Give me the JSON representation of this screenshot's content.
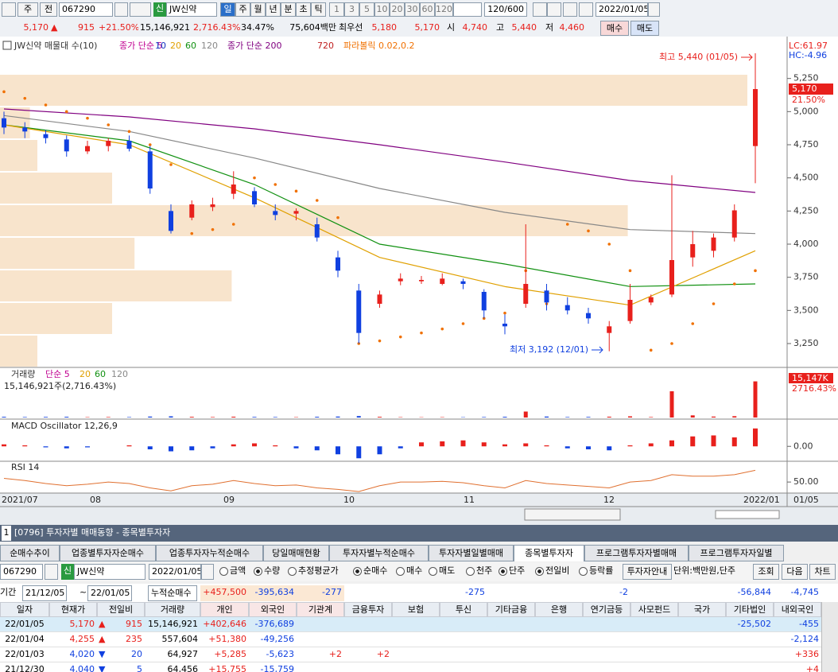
{
  "toolbar": {
    "period_btn": "주",
    "prev_btn": "전",
    "code": "067290",
    "market_badge": "신",
    "name": "JW신약",
    "intervals": [
      {
        "label": "일",
        "selected": true
      },
      {
        "label": "주",
        "selected": false
      },
      {
        "label": "월",
        "selected": false
      },
      {
        "label": "년",
        "selected": false
      },
      {
        "label": "분",
        "selected": false
      },
      {
        "label": "초",
        "selected": false
      },
      {
        "label": "틱",
        "selected": false
      }
    ],
    "minutes": [
      "1",
      "3",
      "5",
      "10",
      "20",
      "30",
      "60",
      "120"
    ],
    "count": "120/600",
    "date": "2022/01/05"
  },
  "quote": {
    "price": "5,170",
    "arrow": "▲",
    "change": "915",
    "rate": "+21.50%",
    "volume": "15,146,921",
    "volume_rate": "2,716.43%",
    "turnover": "34.47%",
    "amount": "75,604백만",
    "best_label": "최우선",
    "ask": "5,180",
    "bid": "5,170",
    "open_label": "시",
    "open": "4,740",
    "high_label": "고",
    "high": "5,440",
    "low_label": "저",
    "low": "4,460",
    "buy": "매수",
    "sell": "매도"
  },
  "chart_data": [
    {
      "type": "candlestick",
      "legend": [
        {
          "text": "JW신약 매물대 수(10)",
          "color": "#333333"
        },
        {
          "text": "종가 단순 5",
          "color": "#c00090"
        },
        {
          "text": "10",
          "color": "#1030c0"
        },
        {
          "text": "20",
          "color": "#e0a000"
        },
        {
          "text": "60",
          "color": "#109010"
        },
        {
          "text": "120",
          "color": "#888888"
        },
        {
          "text": "종가 단순 200",
          "color": "#800080"
        },
        {
          "text": "720",
          "color": "#c02020"
        },
        {
          "text": "파라볼릭 0.02,0.2",
          "color": "#f07000"
        }
      ],
      "lc": "LC:61.97",
      "hc": "HC:-4.96",
      "annotations": [
        "최고 5,440 (01/05)",
        "최저 3,192 (12/01)"
      ],
      "last_price_label": "5,170",
      "last_rate_label": "21.50%",
      "last_price": 5170,
      "ylim": [
        3070,
        5530
      ],
      "yticks": [
        {
          "value": 3250,
          "label": "3,250"
        },
        {
          "value": 3500,
          "label": "3,500"
        },
        {
          "value": 3750,
          "label": "3,750"
        },
        {
          "value": 4000,
          "label": "4,000"
        },
        {
          "value": 4250,
          "label": "4,250"
        },
        {
          "value": 4500,
          "label": "4,500"
        },
        {
          "value": 4750,
          "label": "4,750"
        },
        {
          "value": 5000,
          "label": "5,000"
        },
        {
          "value": 5250,
          "label": "5,250"
        }
      ],
      "ohlc": [
        [
          4950,
          5000,
          4830,
          4880
        ],
        [
          4880,
          4920,
          4800,
          4850
        ],
        [
          4830,
          4860,
          4760,
          4800
        ],
        [
          4790,
          4820,
          4660,
          4700
        ],
        [
          4700,
          4780,
          4680,
          4740
        ],
        [
          4740,
          4800,
          4700,
          4780
        ],
        [
          4780,
          4820,
          4700,
          4720
        ],
        [
          4700,
          4740,
          4380,
          4420
        ],
        [
          4250,
          4300,
          4080,
          4100
        ],
        [
          4200,
          4330,
          4180,
          4300
        ],
        [
          4280,
          4350,
          4250,
          4300
        ],
        [
          4380,
          4550,
          4340,
          4450
        ],
        [
          4400,
          4430,
          4280,
          4300
        ],
        [
          4250,
          4300,
          4180,
          4220
        ],
        [
          4230,
          4270,
          4180,
          4250
        ],
        [
          4150,
          4200,
          4020,
          4050
        ],
        [
          3900,
          3950,
          3750,
          3800
        ],
        [
          3650,
          3700,
          3250,
          3330
        ],
        [
          3550,
          3650,
          3520,
          3620
        ],
        [
          3720,
          3780,
          3690,
          3740
        ],
        [
          3720,
          3760,
          3700,
          3730
        ],
        [
          3700,
          3780,
          3690,
          3740
        ],
        [
          3720,
          3740,
          3660,
          3700
        ],
        [
          3640,
          3660,
          3440,
          3500
        ],
        [
          3400,
          3470,
          3320,
          3380
        ],
        [
          3550,
          4150,
          3520,
          3700
        ],
        [
          3650,
          3700,
          3500,
          3560
        ],
        [
          3540,
          3600,
          3470,
          3500
        ],
        [
          3480,
          3520,
          3400,
          3440
        ],
        [
          3330,
          3420,
          3192,
          3380
        ],
        [
          3420,
          3700,
          3400,
          3580
        ],
        [
          3560,
          3620,
          3540,
          3600
        ],
        [
          3620,
          4520,
          3600,
          3880
        ],
        [
          3900,
          4100,
          3830,
          4000
        ],
        [
          3950,
          4080,
          3900,
          4050
        ],
        [
          4050,
          4300,
          4020,
          4255
        ],
        [
          4740,
          5440,
          4460,
          5170
        ]
      ],
      "series": [
        {
          "color": "#800080",
          "values": [
            5020,
            4960,
            4870,
            4750,
            4620,
            4480,
            4390
          ]
        },
        {
          "color": "#888888",
          "values": [
            4970,
            4850,
            4650,
            4420,
            4240,
            4110,
            4080
          ]
        },
        {
          "color": "#109010",
          "values": [
            4900,
            4780,
            4450,
            4000,
            3850,
            3680,
            3700
          ]
        },
        {
          "color": "#e0a000",
          "values": [
            4900,
            4750,
            4350,
            3900,
            3680,
            3540,
            3950
          ]
        }
      ],
      "sar": [
        5150,
        5100,
        5050,
        5000,
        4950,
        4900,
        4850,
        4750,
        4600,
        4080,
        4110,
        4150,
        4500,
        4450,
        4400,
        4330,
        4200,
        3250,
        3270,
        3300,
        3330,
        3360,
        3400,
        3440,
        3480,
        3800,
        3550,
        4150,
        4100,
        4000,
        3800,
        3200,
        3250,
        3400,
        3550,
        3700,
        3800
      ],
      "sar_color": "#f07000",
      "volume_profile": [
        0,
        100,
        4,
        5,
        15,
        84,
        18,
        31,
        15,
        5
      ],
      "profile_color": "#f8e4cc"
    },
    {
      "type": "volume",
      "legend": [
        {
          "text": "거래량",
          "color": "#333333"
        },
        {
          "text": "단순 5",
          "color": "#c00090"
        },
        {
          "text": "20",
          "color": "#e0a000"
        },
        {
          "text": "60",
          "color": "#109010"
        },
        {
          "text": "120",
          "color": "#888888"
        }
      ],
      "subtitle": "15,146,921주(2,716.43%)",
      "last_label": "15,147K",
      "last_rate": "2716.43%",
      "values": [
        300000,
        200000,
        250000,
        300000,
        150000,
        200000,
        180000,
        400000,
        500000,
        300000,
        200000,
        350000,
        250000,
        200000,
        150000,
        300000,
        400000,
        600000,
        300000,
        150000,
        120000,
        150000,
        130000,
        200000,
        300000,
        2500000,
        400000,
        200000,
        250000,
        350000,
        500000,
        200000,
        11000000,
        900000,
        400000,
        557604,
        15146921
      ],
      "ylim": [
        0,
        16000000
      ]
    },
    {
      "type": "oscillator",
      "title": "MACD Oscillator 12,26,9",
      "values": [
        2,
        1,
        -1,
        -2,
        -1,
        0,
        1,
        -3,
        -5,
        -4,
        -2,
        2,
        3,
        1,
        -2,
        -4,
        -8,
        -12,
        -8,
        -2,
        4,
        5,
        6,
        4,
        2,
        3,
        1,
        -2,
        -3,
        -4,
        1,
        3,
        6,
        10,
        11,
        9,
        18
      ],
      "ylim": [
        -15,
        25
      ],
      "yticks": [
        {
          "value": 0,
          "label": "0.00"
        }
      ]
    },
    {
      "type": "line",
      "title": "RSI 14",
      "color": "#e07030",
      "values": [
        55,
        52,
        48,
        45,
        47,
        50,
        48,
        42,
        38,
        45,
        47,
        52,
        48,
        45,
        46,
        42,
        40,
        37,
        45,
        50,
        50,
        51,
        49,
        45,
        42,
        52,
        48,
        46,
        44,
        42,
        50,
        52,
        60,
        58,
        58,
        60,
        66
      ],
      "ylim": [
        35,
        75
      ],
      "yticks": [
        {
          "value": 50,
          "label": "50.00"
        }
      ],
      "x_labels": [
        "2021/07",
        "08",
        "09",
        "10",
        "11",
        "12",
        "2022/01"
      ],
      "x_end_label": "01/05"
    }
  ],
  "window": {
    "number": "1",
    "title": "[0796] 투자자별 매매동향 - 종목별투자자",
    "tabs": [
      {
        "label": "순매수추이",
        "selected": false
      },
      {
        "label": "업종별투자자순매수",
        "selected": false
      },
      {
        "label": "업종투자자누적순매수",
        "selected": false
      },
      {
        "label": "당일매매현황",
        "selected": false
      },
      {
        "label": "투자자별누적순매수",
        "selected": false
      },
      {
        "label": "투자자별일별매매",
        "selected": false
      },
      {
        "label": "종목별투자자",
        "selected": true
      },
      {
        "label": "프로그램투자자별매매",
        "selected": false
      },
      {
        "label": "프로그램투자자일별",
        "selected": false
      }
    ]
  },
  "controls": {
    "code": "067290",
    "market_badge": "신",
    "name": "JW신약",
    "date": "2022/01/05",
    "radios": [
      {
        "label": "금액",
        "selected": false
      },
      {
        "label": "수량",
        "selected": true
      },
      {
        "label": "추정평균가",
        "selected": false
      },
      {
        "label": "순매수",
        "selected": true
      },
      {
        "label": "매수",
        "selected": false
      },
      {
        "label": "매도",
        "selected": false
      },
      {
        "label": "천주",
        "selected": false
      },
      {
        "label": "단주",
        "selected": true
      },
      {
        "label": "전일비",
        "selected": true
      },
      {
        "label": "등락률",
        "selected": false
      }
    ],
    "guide_btn": "투자자안내",
    "unit": "단위:백만원,단주",
    "query_btn": "조회",
    "next_btn": "다음",
    "chart_btn": "차트"
  },
  "period": {
    "label": "기간",
    "from": "21/12/05",
    "sep": "~",
    "to": "22/01/05",
    "cum_label": "누적순매수",
    "cumulative": [
      "+457,500",
      "-395,634",
      "-277",
      null,
      null,
      "-275",
      null,
      null,
      "-2",
      null,
      null,
      "-56,844",
      "-4,745"
    ]
  },
  "table": {
    "columns": [
      "일자",
      "현재가",
      "전일비",
      "거래량",
      "개인",
      "외국인",
      "기관계",
      "금융투자",
      "보험",
      "투신",
      "기타금융",
      "은행",
      "연기금등",
      "사모펀드",
      "국가",
      "기타법인",
      "내외국인"
    ],
    "rows": [
      {
        "highlighted": true,
        "date": "22/01/05",
        "price": "5,170",
        "arrow": "▲",
        "change": "915",
        "volume": "15,146,921",
        "values": [
          "+402,646",
          "-376,689",
          null,
          null,
          null,
          null,
          null,
          null,
          null,
          null,
          null,
          "-25,502",
          "-455"
        ]
      },
      {
        "highlighted": false,
        "date": "22/01/04",
        "price": "4,255",
        "arrow": "▲",
        "change": "235",
        "volume": "557,604",
        "values": [
          "+51,380",
          "-49,256",
          null,
          null,
          null,
          null,
          null,
          null,
          null,
          null,
          null,
          null,
          "-2,124"
        ]
      },
      {
        "highlighted": false,
        "date": "22/01/03",
        "price": "4,020",
        "arrow": "▼",
        "change": "20",
        "volume": "64,927",
        "values": [
          "+5,285",
          "-5,623",
          "+2",
          "+2",
          null,
          null,
          null,
          null,
          null,
          null,
          null,
          null,
          "+336"
        ]
      },
      {
        "highlighted": false,
        "date": "21/12/30",
        "price": "4,040",
        "arrow": "▼",
        "change": "5",
        "volume": "64,456",
        "values": [
          "+15,755",
          "-15,759",
          null,
          null,
          null,
          null,
          null,
          null,
          null,
          null,
          null,
          null,
          "+4"
        ]
      }
    ]
  }
}
